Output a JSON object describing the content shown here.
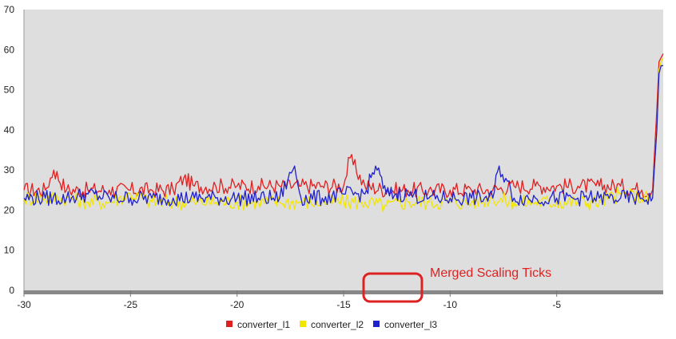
{
  "colors": {
    "plot_background": "#dedede",
    "baseline": "#888888",
    "annotation": "#dd2222"
  },
  "annotation": {
    "text": "Merged Scaling Ticks",
    "shape": "rounded-rectangle",
    "target": "merged x-axis ticks"
  },
  "chart_data": {
    "type": "line",
    "title": "",
    "xlabel": "",
    "ylabel": "",
    "xlim": [
      -30,
      0
    ],
    "ylim": [
      0,
      70
    ],
    "x_ticks": [
      -30,
      -25,
      -20,
      -15,
      -10,
      -5
    ],
    "y_ticks": [
      0,
      10,
      20,
      30,
      40,
      50,
      60,
      70
    ],
    "grid": false,
    "legend_position": "bottom-center",
    "series": [
      {
        "name": "converter_l1",
        "color": "#e02020",
        "points": [
          [
            -30,
            25
          ],
          [
            -29,
            25
          ],
          [
            -28.6,
            30
          ],
          [
            -28,
            25
          ],
          [
            -27,
            25
          ],
          [
            -26,
            25
          ],
          [
            -25,
            25
          ],
          [
            -24,
            25
          ],
          [
            -23,
            25
          ],
          [
            -22.5,
            28
          ],
          [
            -22,
            26
          ],
          [
            -21,
            26
          ],
          [
            -20,
            26
          ],
          [
            -19,
            26
          ],
          [
            -18,
            26
          ],
          [
            -17,
            26
          ],
          [
            -16,
            26
          ],
          [
            -15,
            26
          ],
          [
            -14.7,
            33
          ],
          [
            -14,
            26
          ],
          [
            -13,
            25
          ],
          [
            -12,
            25
          ],
          [
            -11,
            25
          ],
          [
            -10,
            25
          ],
          [
            -9,
            25
          ],
          [
            -8,
            25
          ],
          [
            -7,
            26
          ],
          [
            -6,
            26
          ],
          [
            -5,
            26
          ],
          [
            -4,
            26
          ],
          [
            -3,
            26
          ],
          [
            -2,
            26
          ],
          [
            -1,
            25
          ],
          [
            -0.5,
            25
          ],
          [
            -0.3,
            45
          ],
          [
            -0.2,
            57
          ],
          [
            -0.1,
            58
          ],
          [
            0,
            59
          ]
        ]
      },
      {
        "name": "converter_l2",
        "color": "#f2e600",
        "points": [
          [
            -30,
            23
          ],
          [
            -29,
            23
          ],
          [
            -28,
            23
          ],
          [
            -27,
            22
          ],
          [
            -26,
            22
          ],
          [
            -25,
            24
          ],
          [
            -24,
            22
          ],
          [
            -23,
            22
          ],
          [
            -22,
            22
          ],
          [
            -21,
            22
          ],
          [
            -20,
            22
          ],
          [
            -19,
            22
          ],
          [
            -18,
            22
          ],
          [
            -17,
            22
          ],
          [
            -16,
            22
          ],
          [
            -15,
            22
          ],
          [
            -14,
            22
          ],
          [
            -13,
            21
          ],
          [
            -12,
            22
          ],
          [
            -11,
            22
          ],
          [
            -10,
            22
          ],
          [
            -9,
            22
          ],
          [
            -8,
            23
          ],
          [
            -7,
            22
          ],
          [
            -6,
            22
          ],
          [
            -5,
            22
          ],
          [
            -4,
            22
          ],
          [
            -3,
            22
          ],
          [
            -2,
            24
          ],
          [
            -1,
            23
          ],
          [
            -0.5,
            23
          ],
          [
            -0.3,
            40
          ],
          [
            -0.2,
            55
          ],
          [
            -0.1,
            57
          ],
          [
            0,
            58
          ]
        ]
      },
      {
        "name": "converter_l3",
        "color": "#2020cc",
        "points": [
          [
            -30,
            23
          ],
          [
            -29,
            23
          ],
          [
            -28,
            23
          ],
          [
            -27,
            24
          ],
          [
            -26,
            23
          ],
          [
            -25,
            23
          ],
          [
            -24,
            23
          ],
          [
            -23,
            23
          ],
          [
            -22,
            23
          ],
          [
            -21,
            23
          ],
          [
            -20,
            23
          ],
          [
            -19,
            23
          ],
          [
            -18,
            23
          ],
          [
            -17.3,
            31
          ],
          [
            -17,
            23
          ],
          [
            -16,
            23
          ],
          [
            -15,
            24
          ],
          [
            -14,
            24
          ],
          [
            -13.5,
            31
          ],
          [
            -13,
            24
          ],
          [
            -12,
            24
          ],
          [
            -11,
            23
          ],
          [
            -10,
            23
          ],
          [
            -9,
            23
          ],
          [
            -8,
            23
          ],
          [
            -7.7,
            31
          ],
          [
            -7,
            23
          ],
          [
            -6,
            23
          ],
          [
            -5,
            23
          ],
          [
            -4,
            23
          ],
          [
            -3,
            23
          ],
          [
            -2,
            23
          ],
          [
            -1,
            23
          ],
          [
            -0.5,
            23
          ],
          [
            -0.3,
            40
          ],
          [
            -0.2,
            54
          ],
          [
            -0.1,
            56
          ],
          [
            0,
            56
          ]
        ]
      }
    ]
  }
}
